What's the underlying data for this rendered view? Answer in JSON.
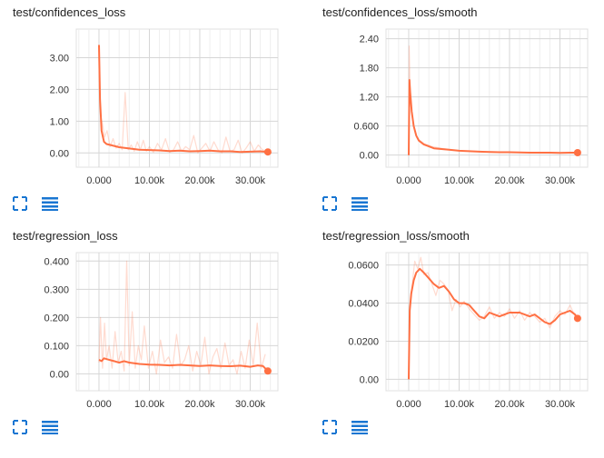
{
  "accent_color": "#ff7043",
  "grid_color": "#e0e0e0",
  "icons": {
    "expand": "fullscreen-icon",
    "data": "list-icon"
  },
  "charts": [
    {
      "id": "c0",
      "title": "test/confidences_loss",
      "chart_data": {
        "type": "line",
        "title": "test/confidences_loss",
        "xlabel": "",
        "ylabel": "",
        "xlim": [
          -4500,
          35500
        ],
        "ylim": [
          -0.45,
          3.9
        ],
        "xticks": [
          0,
          10000,
          20000,
          30000
        ],
        "xtick_labels": [
          "0.000",
          "10.00k",
          "20.00k",
          "30.00k"
        ],
        "yticks": [
          0,
          1,
          2,
          3
        ],
        "ytick_labels": [
          "0.00",
          "1.00",
          "2.00",
          "3.00"
        ],
        "grid": true,
        "series": [
          {
            "role": "smoothed",
            "x": [
              0,
              200,
              500,
              1000,
              1500,
              2500,
              4000,
              6000,
              8000,
              10000,
              12000,
              14000,
              16000,
              18000,
              20000,
              22000,
              24000,
              26000,
              28000,
              30000,
              32000,
              33500
            ],
            "y": [
              3.4,
              1.7,
              0.7,
              0.35,
              0.28,
              0.24,
              0.18,
              0.14,
              0.1,
              0.09,
              0.08,
              0.06,
              0.07,
              0.05,
              0.06,
              0.07,
              0.05,
              0.05,
              0.03,
              0.04,
              0.05,
              0.03
            ]
          },
          {
            "role": "raw",
            "x": [
              0,
              300,
              700,
              1100,
              1600,
              2200,
              2800,
              3400,
              4000,
              4600,
              5200,
              5800,
              6400,
              7000,
              7600,
              8200,
              8800,
              9400,
              10000,
              10800,
              11600,
              12400,
              13200,
              14000,
              14800,
              15600,
              16400,
              17200,
              18000,
              18800,
              19600,
              20400,
              21200,
              22000,
              22800,
              23600,
              24400,
              25200,
              26000,
              26800,
              27600,
              28400,
              29200,
              30000,
              30800,
              31600,
              32400,
              33500
            ],
            "y": [
              3.0,
              1.2,
              0.9,
              0.5,
              0.7,
              0.2,
              0.45,
              0.15,
              0.3,
              0.1,
              1.9,
              0.1,
              0.25,
              0.05,
              0.35,
              0.1,
              0.4,
              0.05,
              0.2,
              0.02,
              0.3,
              0.1,
              0.45,
              0.02,
              0.1,
              0.35,
              0.05,
              0.2,
              0.1,
              0.55,
              0.0,
              0.15,
              0.3,
              0.05,
              0.35,
              0.1,
              0.0,
              0.5,
              0.05,
              0.1,
              0.4,
              0.0,
              0.15,
              0.35,
              0.05,
              0.25,
              0.1,
              0.05
            ]
          }
        ]
      }
    },
    {
      "id": "c1",
      "title": "test/confidences_loss/smooth",
      "chart_data": {
        "type": "line",
        "title": "test/confidences_loss/smooth",
        "xlabel": "",
        "ylabel": "",
        "xlim": [
          -4500,
          35500
        ],
        "ylim": [
          -0.25,
          2.6
        ],
        "xticks": [
          0,
          10000,
          20000,
          30000
        ],
        "xtick_labels": [
          "0.000",
          "10.00k",
          "20.00k",
          "30.00k"
        ],
        "yticks": [
          0,
          0.6,
          1.2,
          1.8,
          2.4
        ],
        "ytick_labels": [
          "0.00",
          "0.600",
          "1.20",
          "1.80",
          "2.40"
        ],
        "grid": true,
        "series": [
          {
            "role": "smoothed",
            "x": [
              0,
              150,
              300,
              600,
              1000,
              1500,
              2000,
              3000,
              4000,
              5000,
              6000,
              8000,
              10000,
              12000,
              14000,
              16000,
              18000,
              20000,
              22000,
              24000,
              26000,
              28000,
              30000,
              32000,
              33500
            ],
            "y": [
              0.0,
              1.55,
              1.3,
              0.9,
              0.6,
              0.4,
              0.3,
              0.22,
              0.18,
              0.14,
              0.13,
              0.11,
              0.09,
              0.08,
              0.07,
              0.065,
              0.06,
              0.06,
              0.055,
              0.05,
              0.05,
              0.05,
              0.045,
              0.05,
              0.05
            ]
          },
          {
            "role": "raw",
            "x": [
              0,
              100,
              250,
              500,
              900,
              1400,
              2000,
              3000,
              4500,
              6500,
              9000,
              12000,
              16000,
              20000,
              25000,
              30000,
              33500
            ],
            "y": [
              0.0,
              2.25,
              1.4,
              0.9,
              0.65,
              0.42,
              0.32,
              0.24,
              0.18,
              0.14,
              0.1,
              0.08,
              0.07,
              0.06,
              0.05,
              0.05,
              0.05
            ]
          }
        ]
      }
    },
    {
      "id": "c2",
      "title": "test/regression_loss",
      "chart_data": {
        "type": "line",
        "title": "test/regression_loss",
        "xlabel": "",
        "ylabel": "",
        "xlim": [
          -4500,
          35500
        ],
        "ylim": [
          -0.06,
          0.43
        ],
        "xticks": [
          0,
          10000,
          20000,
          30000
        ],
        "xtick_labels": [
          "0.000",
          "10.00k",
          "20.00k",
          "30.00k"
        ],
        "yticks": [
          0,
          0.1,
          0.2,
          0.3,
          0.4
        ],
        "ytick_labels": [
          "0.00",
          "0.100",
          "0.200",
          "0.300",
          "0.400"
        ],
        "grid": true,
        "series": [
          {
            "role": "smoothed",
            "x": [
              0,
              500,
              1000,
              2000,
              3000,
              4000,
              5000,
              6000,
              8000,
              10000,
              12000,
              14000,
              16000,
              18000,
              20000,
              22000,
              24000,
              26000,
              28000,
              30000,
              31500,
              32500,
              33500
            ],
            "y": [
              0.05,
              0.045,
              0.055,
              0.05,
              0.045,
              0.04,
              0.045,
              0.04,
              0.035,
              0.033,
              0.032,
              0.03,
              0.032,
              0.03,
              0.028,
              0.03,
              0.028,
              0.027,
              0.029,
              0.025,
              0.03,
              0.028,
              0.01
            ]
          },
          {
            "role": "raw",
            "x": [
              0,
              300,
              700,
              1100,
              1500,
              2000,
              2600,
              3200,
              3800,
              4400,
              5000,
              5500,
              6000,
              6600,
              7200,
              7800,
              8400,
              9000,
              9800,
              10600,
              11400,
              12200,
              13000,
              13800,
              14600,
              15400,
              16200,
              17000,
              17800,
              18600,
              19400,
              20200,
              21000,
              21800,
              22600,
              23400,
              24200,
              25000,
              25800,
              26600,
              27400,
              28200,
              29000,
              29800,
              30600,
              31400,
              32200,
              33000
            ],
            "y": [
              0.04,
              0.2,
              0.02,
              0.18,
              0.05,
              0.1,
              0.02,
              0.15,
              0.04,
              0.08,
              0.01,
              0.4,
              0.03,
              0.22,
              0.02,
              0.1,
              0.05,
              0.17,
              0.02,
              0.08,
              0.0,
              0.12,
              0.04,
              0.06,
              0.02,
              0.14,
              0.03,
              0.05,
              0.1,
              0.01,
              0.08,
              0.03,
              0.13,
              0.0,
              0.06,
              0.09,
              0.02,
              0.11,
              0.03,
              0.05,
              0.0,
              0.08,
              0.02,
              0.12,
              0.03,
              0.18,
              0.02,
              0.07
            ]
          }
        ]
      }
    },
    {
      "id": "c3",
      "title": "test/regression_loss/smooth",
      "chart_data": {
        "type": "line",
        "title": "test/regression_loss/smooth",
        "xlabel": "",
        "ylabel": "",
        "xlim": [
          -4500,
          35500
        ],
        "ylim": [
          -0.006,
          0.0665
        ],
        "xticks": [
          0,
          10000,
          20000,
          30000
        ],
        "xtick_labels": [
          "0.000",
          "10.00k",
          "20.00k",
          "30.00k"
        ],
        "yticks": [
          0,
          0.02,
          0.04,
          0.06
        ],
        "ytick_labels": [
          "0.00",
          "0.0200",
          "0.0400",
          "0.0600"
        ],
        "grid": true,
        "series": [
          {
            "role": "smoothed",
            "x": [
              0,
              200,
              500,
              1000,
              1500,
              2200,
              3000,
              4000,
              5000,
              6000,
              7000,
              8000,
              9000,
              10000,
              11000,
              12000,
              13000,
              14000,
              15000,
              16000,
              17000,
              18000,
              19000,
              20000,
              21000,
              22000,
              23000,
              24000,
              25000,
              26000,
              27000,
              28000,
              29000,
              30000,
              31000,
              32000,
              33000,
              33500
            ],
            "y": [
              0.0,
              0.036,
              0.045,
              0.052,
              0.056,
              0.058,
              0.056,
              0.053,
              0.05,
              0.048,
              0.049,
              0.046,
              0.042,
              0.04,
              0.04,
              0.039,
              0.036,
              0.033,
              0.032,
              0.035,
              0.034,
              0.033,
              0.034,
              0.035,
              0.035,
              0.035,
              0.034,
              0.033,
              0.034,
              0.032,
              0.03,
              0.029,
              0.031,
              0.034,
              0.035,
              0.036,
              0.034,
              0.032
            ]
          },
          {
            "role": "raw",
            "x": [
              0,
              300,
              700,
              1200,
              1800,
              2400,
              3000,
              3800,
              4600,
              5400,
              6200,
              7000,
              7800,
              8600,
              9400,
              10200,
              11000,
              12000,
              13000,
              14000,
              15000,
              16000,
              17000,
              18000,
              19000,
              20000,
              21000,
              22000,
              23000,
              24000,
              25000,
              26000,
              27000,
              28000,
              29000,
              30000,
              31000,
              32000,
              33000
            ],
            "y": [
              0.0,
              0.04,
              0.05,
              0.062,
              0.058,
              0.064,
              0.055,
              0.056,
              0.05,
              0.044,
              0.052,
              0.05,
              0.047,
              0.036,
              0.042,
              0.038,
              0.041,
              0.037,
              0.034,
              0.031,
              0.033,
              0.038,
              0.032,
              0.035,
              0.033,
              0.037,
              0.032,
              0.036,
              0.031,
              0.035,
              0.033,
              0.03,
              0.032,
              0.027,
              0.033,
              0.036,
              0.034,
              0.039,
              0.033
            ]
          }
        ]
      }
    }
  ]
}
